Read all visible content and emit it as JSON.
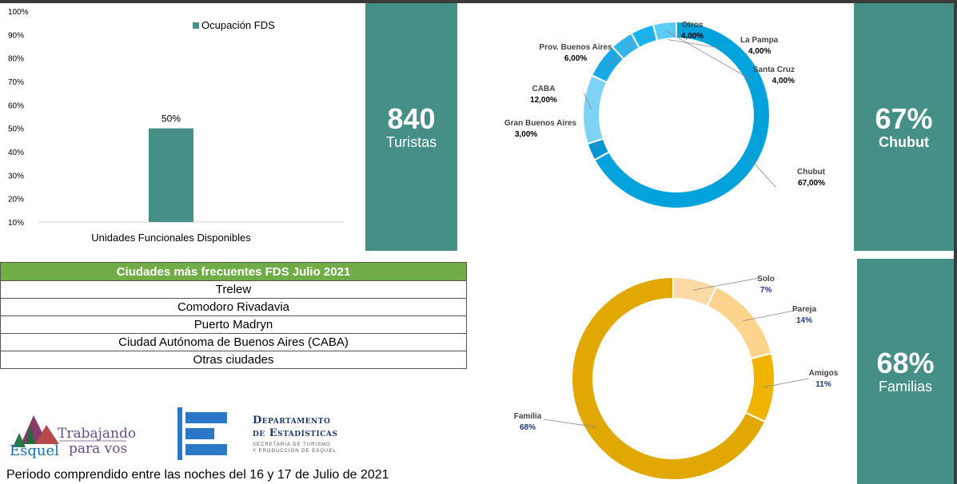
{
  "colors": {
    "teal_panel": "#468f86",
    "bar": "#468f86",
    "table_header": "#70ad47",
    "blue_donut": [
      "#00a2db",
      "#0096d6",
      "#7ed3f5",
      "#1aa9e6",
      "#33b4ea",
      "#18b4f0",
      "#5ccbf5"
    ],
    "gold_donut": [
      "#fdd9a6",
      "#fcd48e",
      "#f0b400",
      "#e0a800"
    ]
  },
  "chart_data": [
    {
      "type": "bar",
      "categories": [
        "Unidades Funcionales Disponibles"
      ],
      "series": [
        {
          "name": "Ocupación FDS",
          "values": [
            50
          ]
        }
      ],
      "data_labels": [
        "50%"
      ],
      "yticks": [
        "100%",
        "90%",
        "80%",
        "70%",
        "60%",
        "50%",
        "40%",
        "30%",
        "20%",
        "10%"
      ],
      "ylim": [
        10,
        100
      ],
      "legend": "top-right",
      "grid": false
    },
    {
      "type": "pie",
      "slices": [
        {
          "label": "Chubut",
          "value": 67.0,
          "value_label": "67,00%"
        },
        {
          "label": "Gran Buenos Aires",
          "value": 3.0,
          "value_label": "3,00%"
        },
        {
          "label": "CABA",
          "value": 12.0,
          "value_label": "12,00%"
        },
        {
          "label": "Prov. Buenos Aires",
          "value": 6.0,
          "value_label": "6,00%"
        },
        {
          "label": "Otros",
          "value": 4.0,
          "value_label": "4,00%"
        },
        {
          "label": "La Pampa",
          "value": 4.0,
          "value_label": "4,00%"
        },
        {
          "label": "Santa Cruz",
          "value": 4.0,
          "value_label": "4,00%"
        }
      ]
    },
    {
      "type": "pie",
      "slices": [
        {
          "label": "Solo",
          "value": 7,
          "value_label": "7%"
        },
        {
          "label": "Pareja",
          "value": 14,
          "value_label": "14%"
        },
        {
          "label": "Amigos",
          "value": 11,
          "value_label": "11%"
        },
        {
          "label": "Familia",
          "value": 68,
          "value_label": "68%"
        }
      ]
    }
  ],
  "panels": {
    "tourists": {
      "value": "840",
      "label": "Turistas"
    },
    "origin": {
      "value": "67%",
      "label": "Chubut"
    },
    "group": {
      "value": "68%",
      "label": "Familias"
    }
  },
  "cities_table": {
    "header": "Ciudades más frecuentes FDS Julio 2021",
    "rows": [
      "Trelew",
      "Comodoro Rivadavia",
      "Puerto Madryn",
      "Ciudad Autónoma de Buenos Aires (CABA)",
      "Otras ciudades"
    ]
  },
  "logos": {
    "esquel": {
      "line1": "Trabajando",
      "line2": "para vos",
      "brand": "Esquel"
    },
    "stats": {
      "title1": "Departamento",
      "title2": "de Estadísticas",
      "sub1": "SECRETARÍA DE TURISMO",
      "sub2": "Y PRODUCCIÓN DE ESQUEL"
    }
  },
  "footer": "Periodo comprendido entre las noches del 16 y 17 de Julio de 2021"
}
